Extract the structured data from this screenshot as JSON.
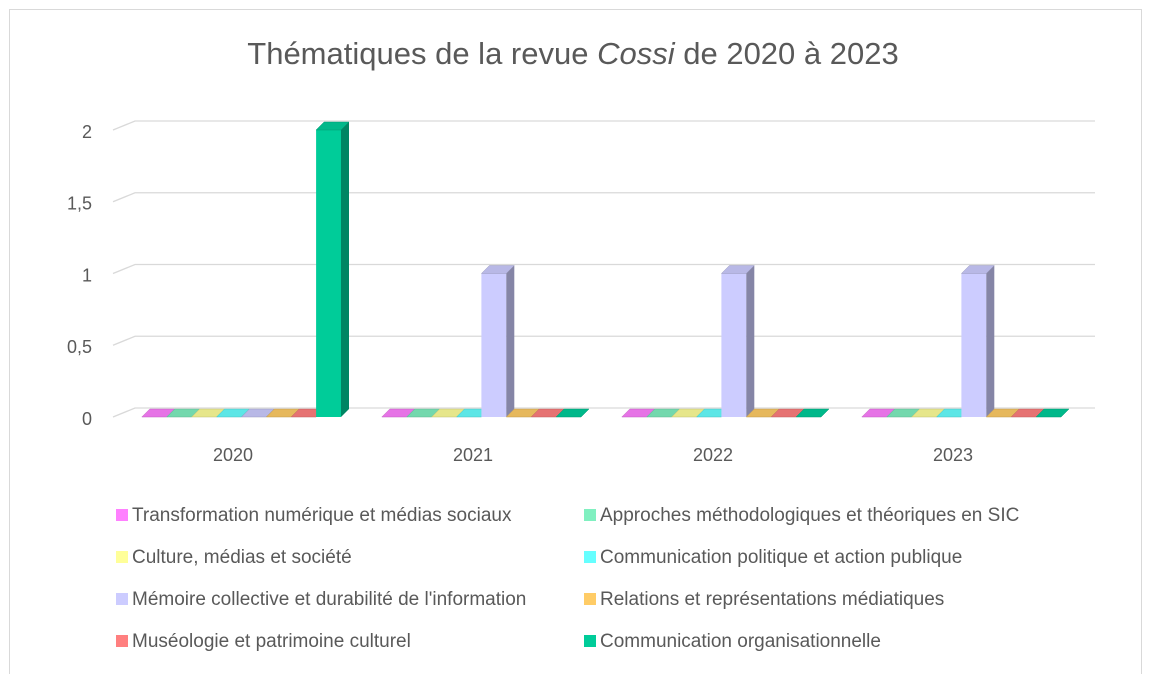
{
  "chart_data": {
    "type": "bar3d",
    "title": [
      "Thématiques de la revue",
      "Cossi",
      "de 2020 à 2023"
    ],
    "categories": [
      "2020",
      "2021",
      "2022",
      "2023"
    ],
    "series": [
      {
        "name": "Transformation numérique et médias sociaux",
        "color": "#ff80ff",
        "values": [
          0,
          0,
          0,
          0
        ]
      },
      {
        "name": "Approches méthodologiques et théoriques en SIC",
        "color": "#80f0c0",
        "values": [
          0,
          0,
          0,
          0
        ]
      },
      {
        "name": "Culture, médias et société",
        "color": "#ffff99",
        "values": [
          0,
          0,
          0,
          0
        ]
      },
      {
        "name": "Communication politique et action publique",
        "color": "#66ffff",
        "values": [
          0,
          0,
          0,
          0
        ]
      },
      {
        "name": "Mémoire collective et durabilité de l'information",
        "color": "#ccccff",
        "values": [
          0,
          1,
          1,
          1
        ]
      },
      {
        "name": "Relations et représentations médiatiques",
        "color": "#ffcc66",
        "values": [
          0,
          0,
          0,
          0
        ]
      },
      {
        "name": "Muséologie et patrimoine culturel",
        "color": "#ff7f7f",
        "values": [
          0,
          0,
          0,
          0
        ]
      },
      {
        "name": "Communication organisationnelle",
        "color": "#00cc99",
        "values": [
          2,
          0,
          0,
          0
        ]
      }
    ],
    "ylim": [
      0,
      2
    ],
    "yticks": [
      0,
      {
        "value": 0.5,
        "label": "0,5"
      },
      1,
      {
        "value": 1.5,
        "label": "1,5"
      },
      2
    ],
    "grid": true,
    "legend": "bottom"
  }
}
